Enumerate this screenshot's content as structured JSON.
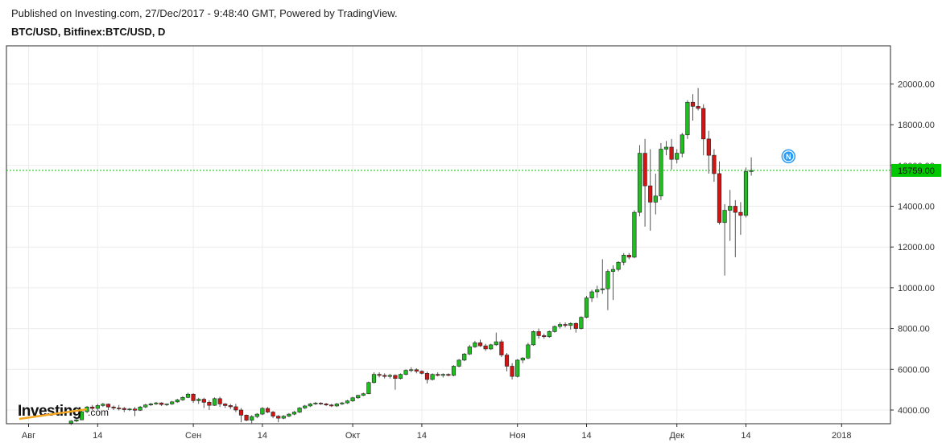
{
  "header": {
    "published": "Published on Investing.com, 27/Dec/2017 - 9:48:40 GMT, Powered by TradingView.",
    "symbol": "BTC/USD, Bitfinex:BTC/USD, D"
  },
  "logo": {
    "main": "Investing",
    "sub": ".com"
  },
  "chart_data": {
    "type": "candlestick",
    "title": "BTC/USD, Bitfinex:BTC/USD, D",
    "xlabel": "",
    "ylabel": "",
    "ylim": [
      3400,
      22000
    ],
    "grid": true,
    "last_price": 15759,
    "last_price_label": "15759.00",
    "up_color": "#1fbd1f",
    "down_color": "#d11515",
    "price_line_color": "#00c800",
    "marker": {
      "label": "N",
      "date": "2017-12-22",
      "value": 16450,
      "color": "#2b9bf4"
    },
    "y_ticks": [
      {
        "value": 4000,
        "label": "4000.00"
      },
      {
        "value": 6000,
        "label": "6000.00"
      },
      {
        "value": 8000,
        "label": "8000.00"
      },
      {
        "value": 10000,
        "label": "10000.00"
      },
      {
        "value": 12000,
        "label": "12000.00"
      },
      {
        "value": 14000,
        "label": "14000.00"
      },
      {
        "value": 16000,
        "label": "16000.00"
      },
      {
        "value": 18000,
        "label": "18000.00"
      },
      {
        "value": 20000,
        "label": "20000.00"
      }
    ],
    "x_ticks": [
      {
        "date": "2017-08-01",
        "label": "Авг"
      },
      {
        "date": "2017-08-14",
        "label": "14"
      },
      {
        "date": "2017-09-01",
        "label": "Сен"
      },
      {
        "date": "2017-09-14",
        "label": "14"
      },
      {
        "date": "2017-10-01",
        "label": "Окт"
      },
      {
        "date": "2017-10-14",
        "label": "14"
      },
      {
        "date": "2017-11-01",
        "label": "Ноя"
      },
      {
        "date": "2017-11-14",
        "label": "14"
      },
      {
        "date": "2017-12-01",
        "label": "Дек"
      },
      {
        "date": "2017-12-14",
        "label": "14"
      },
      {
        "date": "2018-01-01",
        "label": "2018"
      }
    ],
    "first_date": "2017-08-09",
    "candles": [
      [
        3360,
        3500,
        3260,
        3460
      ],
      [
        3460,
        3560,
        3400,
        3520
      ],
      [
        3520,
        3980,
        3500,
        3920
      ],
      [
        3920,
        4200,
        3850,
        4150
      ],
      [
        4150,
        4250,
        4000,
        4080
      ],
      [
        4080,
        4300,
        4000,
        4220
      ],
      [
        4220,
        4350,
        4150,
        4290
      ],
      [
        4290,
        4320,
        4000,
        4150
      ],
      [
        4150,
        4220,
        4000,
        4100
      ],
      [
        4100,
        4250,
        3980,
        4080
      ],
      [
        4080,
        4150,
        3900,
        4020
      ],
      [
        4020,
        4100,
        3950,
        4050
      ],
      [
        4050,
        4150,
        3700,
        3990
      ],
      [
        3990,
        4200,
        3950,
        4150
      ],
      [
        4150,
        4300,
        4100,
        4250
      ],
      [
        4250,
        4360,
        4200,
        4300
      ],
      [
        4300,
        4400,
        4250,
        4350
      ],
      [
        4350,
        4380,
        4200,
        4270
      ],
      [
        4270,
        4320,
        4200,
        4300
      ],
      [
        4300,
        4450,
        4250,
        4400
      ],
      [
        4400,
        4550,
        4350,
        4500
      ],
      [
        4500,
        4680,
        4450,
        4620
      ],
      [
        4620,
        4850,
        4580,
        4780
      ],
      [
        4780,
        4820,
        4350,
        4460
      ],
      [
        4460,
        4600,
        4300,
        4530
      ],
      [
        4530,
        4600,
        4100,
        4380
      ],
      [
        4380,
        4480,
        4000,
        4230
      ],
      [
        4230,
        4620,
        4200,
        4560
      ],
      [
        4560,
        4650,
        4150,
        4300
      ],
      [
        4300,
        4340,
        4100,
        4220
      ],
      [
        4220,
        4300,
        4050,
        4160
      ],
      [
        4160,
        4300,
        3900,
        4000
      ],
      [
        4000,
        4100,
        3400,
        3750
      ],
      [
        3750,
        3780,
        3450,
        3500
      ],
      [
        3500,
        3750,
        3300,
        3680
      ],
      [
        3680,
        3850,
        3600,
        3800
      ],
      [
        3800,
        4150,
        3750,
        4080
      ],
      [
        4080,
        4150,
        3850,
        3900
      ],
      [
        3900,
        3950,
        3600,
        3700
      ],
      [
        3700,
        3750,
        3400,
        3600
      ],
      [
        3600,
        3750,
        3550,
        3700
      ],
      [
        3700,
        3850,
        3650,
        3800
      ],
      [
        3800,
        3950,
        3750,
        3900
      ],
      [
        3900,
        4150,
        3850,
        4100
      ],
      [
        4100,
        4250,
        4050,
        4200
      ],
      [
        4200,
        4350,
        4150,
        4300
      ],
      [
        4300,
        4400,
        4250,
        4340
      ],
      [
        4340,
        4380,
        4250,
        4300
      ],
      [
        4300,
        4350,
        4200,
        4250
      ],
      [
        4250,
        4300,
        4150,
        4200
      ],
      [
        4200,
        4350,
        4150,
        4300
      ],
      [
        4300,
        4400,
        4250,
        4350
      ],
      [
        4350,
        4500,
        4300,
        4450
      ],
      [
        4450,
        4650,
        4400,
        4600
      ],
      [
        4600,
        4750,
        4550,
        4720
      ],
      [
        4720,
        4850,
        4680,
        4800
      ],
      [
        4800,
        5400,
        4780,
        5350
      ],
      [
        5350,
        5850,
        5300,
        5750
      ],
      [
        5750,
        5850,
        5600,
        5700
      ],
      [
        5700,
        5800,
        5550,
        5650
      ],
      [
        5650,
        5780,
        5550,
        5700
      ],
      [
        5700,
        5750,
        5000,
        5550
      ],
      [
        5550,
        5800,
        5500,
        5750
      ],
      [
        5750,
        6000,
        5700,
        5950
      ],
      [
        5950,
        6100,
        5850,
        5980
      ],
      [
        5980,
        6050,
        5800,
        5900
      ],
      [
        5900,
        5950,
        5750,
        5800
      ],
      [
        5800,
        5880,
        5300,
        5500
      ],
      [
        5500,
        5800,
        5450,
        5750
      ],
      [
        5750,
        5850,
        5650,
        5700
      ],
      [
        5700,
        5800,
        5600,
        5750
      ],
      [
        5750,
        5800,
        5650,
        5700
      ],
      [
        5700,
        6200,
        5650,
        6150
      ],
      [
        6150,
        6500,
        6100,
        6450
      ],
      [
        6450,
        6800,
        6400,
        6750
      ],
      [
        6750,
        7200,
        6700,
        7100
      ],
      [
        7100,
        7400,
        7050,
        7300
      ],
      [
        7300,
        7450,
        7100,
        7150
      ],
      [
        7150,
        7250,
        6900,
        7000
      ],
      [
        7000,
        7250,
        6950,
        7200
      ],
      [
        7200,
        7800,
        7150,
        7350
      ],
      [
        7350,
        7450,
        6600,
        6700
      ],
      [
        6700,
        6800,
        5900,
        6150
      ],
      [
        6150,
        6300,
        5500,
        5650
      ],
      [
        5650,
        6500,
        5600,
        6450
      ],
      [
        6450,
        6600,
        6300,
        6550
      ],
      [
        6550,
        7300,
        6500,
        7200
      ],
      [
        7200,
        7900,
        7150,
        7850
      ],
      [
        7850,
        8000,
        7500,
        7650
      ],
      [
        7650,
        7750,
        7500,
        7600
      ],
      [
        7600,
        7900,
        7550,
        7850
      ],
      [
        7850,
        8150,
        7800,
        8100
      ],
      [
        8100,
        8300,
        8000,
        8200
      ],
      [
        8200,
        8300,
        8050,
        8150
      ],
      [
        8150,
        8300,
        7950,
        8250
      ],
      [
        8250,
        8300,
        7800,
        8000
      ],
      [
        8000,
        8600,
        7950,
        8550
      ],
      [
        8550,
        9600,
        8500,
        9500
      ],
      [
        9500,
        9900,
        9300,
        9800
      ],
      [
        9800,
        10100,
        9500,
        9900
      ],
      [
        9900,
        11400,
        9700,
        9950
      ],
      [
        9950,
        10900,
        8900,
        10800
      ],
      [
        10800,
        11100,
        9400,
        10900
      ],
      [
        10900,
        11300,
        10800,
        11250
      ],
      [
        11250,
        11700,
        11100,
        11600
      ],
      [
        11600,
        11700,
        11400,
        11500
      ],
      [
        11500,
        13800,
        11450,
        13700
      ],
      [
        13700,
        17000,
        13500,
        16600
      ],
      [
        16600,
        17300,
        13000,
        15000
      ],
      [
        15000,
        16800,
        12800,
        14200
      ],
      [
        14200,
        15600,
        13600,
        14500
      ],
      [
        14500,
        17100,
        14300,
        16800
      ],
      [
        16800,
        17200,
        16500,
        16900
      ],
      [
        16900,
        17300,
        15800,
        16300
      ],
      [
        16300,
        16800,
        16100,
        16600
      ],
      [
        16600,
        17600,
        16400,
        17500
      ],
      [
        17500,
        19200,
        17300,
        19100
      ],
      [
        19100,
        19500,
        18200,
        18900
      ],
      [
        18900,
        19800,
        18700,
        18800
      ],
      [
        18800,
        19000,
        16500,
        17300
      ],
      [
        17300,
        17700,
        15600,
        16500
      ],
      [
        16500,
        16800,
        15200,
        15600
      ],
      [
        15600,
        16200,
        13100,
        13200
      ],
      [
        13200,
        14100,
        10600,
        13800
      ],
      [
        13800,
        14800,
        12300,
        14000
      ],
      [
        14000,
        14300,
        11500,
        13700
      ],
      [
        13700,
        14200,
        12600,
        13550
      ],
      [
        13550,
        15900,
        13450,
        15700
      ],
      [
        15700,
        16400,
        15500,
        15759
      ]
    ]
  }
}
